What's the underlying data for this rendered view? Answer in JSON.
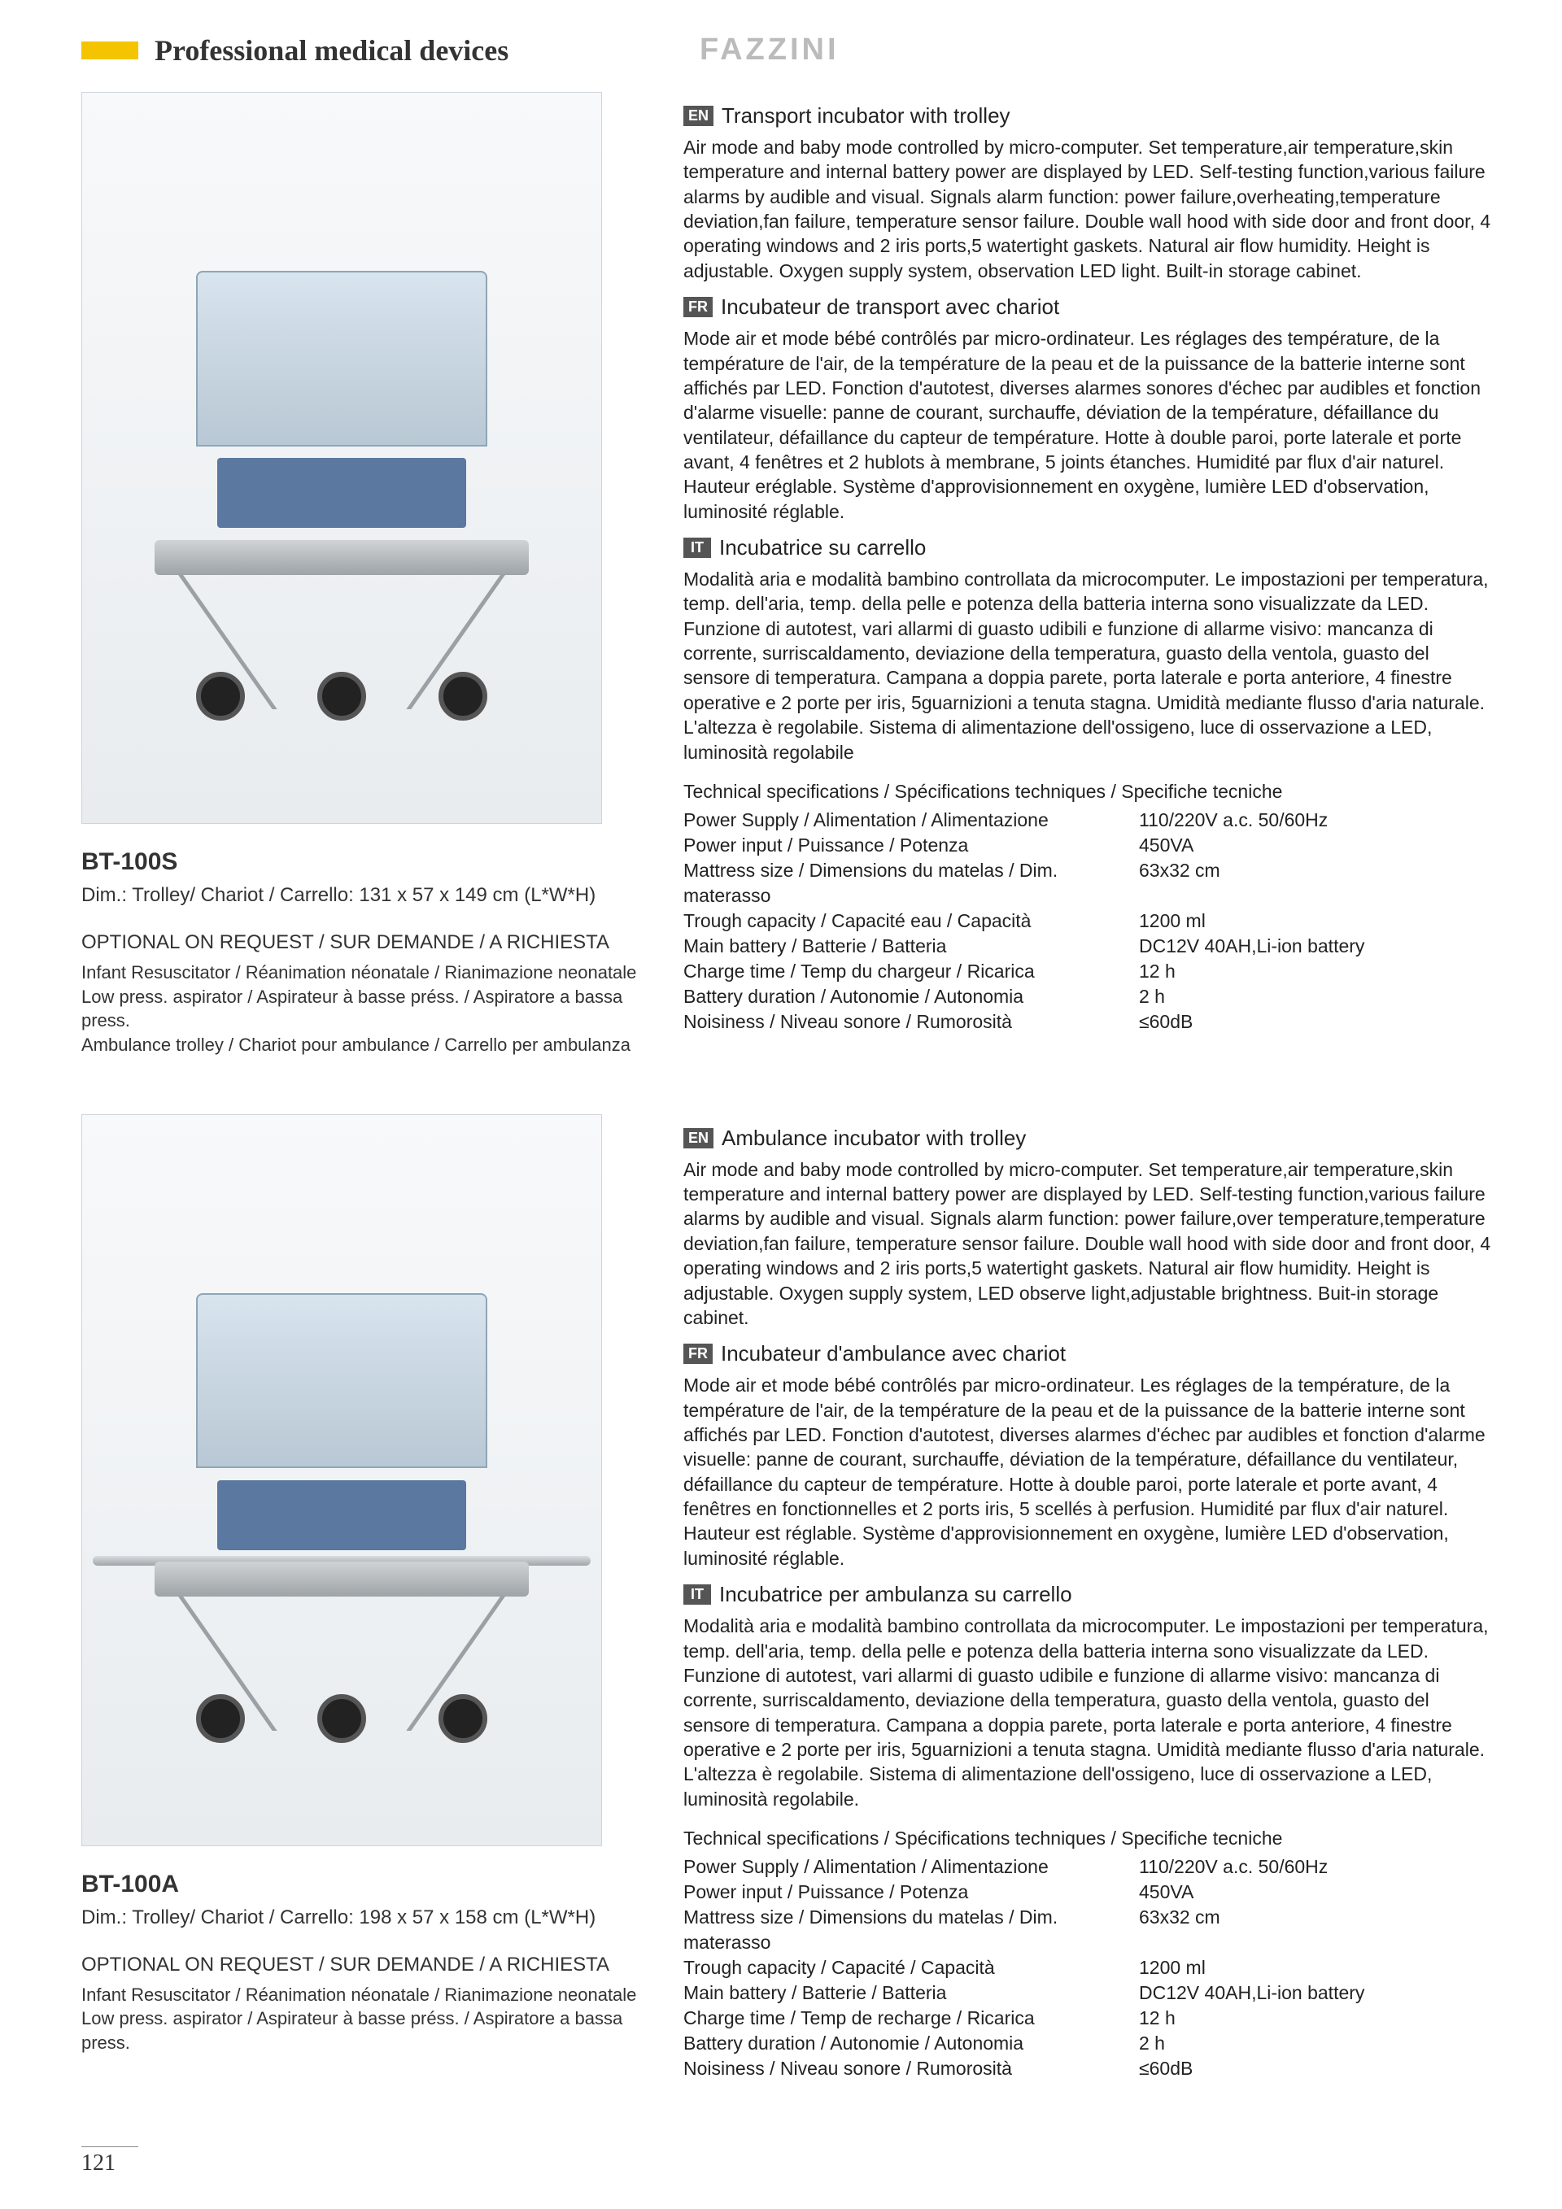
{
  "page": {
    "title": "Professional medical devices",
    "brand": "FAZZINI",
    "number": "121",
    "colors": {
      "accent_yellow": "#f5c400",
      "brand_gray": "#bbbbbb",
      "badge_bg": "#555555"
    }
  },
  "product1": {
    "model": "BT-100S",
    "dim": "Dim.: Trolley/ Chariot / Carrello: 131 x 57 x 149 cm (L*W*H)",
    "optional_header": "OPTIONAL ON REQUEST / SUR DEMANDE / A RICHIESTA",
    "optional_lines": [
      "Infant Resuscitator / Réanimation néonatale / Rianimazione neonatale",
      "Low press. aspirator / Aspirateur à basse préss. / Aspiratore a bassa press.",
      "Ambulance trolley / Chariot pour ambulance / Carrello per ambulanza"
    ],
    "en": {
      "badge": "EN",
      "title": "Transport incubator with trolley",
      "body": "Air mode and baby mode controlled by micro-computer. Set temperature,air temperature,skin temperature and internal battery power are displayed by LED. Self-testing function,various failure alarms by audible and visual. Signals alarm function: power failure,overheating,temperature deviation,fan failure, temperature sensor failure. Double wall hood with side door and front door, 4 operating windows and 2 iris ports,5 watertight gaskets. Natural air flow humidity. Height is adjustable. Oxygen supply system, observation LED light. Built-in storage cabinet."
    },
    "fr": {
      "badge": "FR",
      "title": "Incubateur de transport avec chariot",
      "body": "Mode air et mode bébé contrôlés par micro-ordinateur. Les réglages des température, de la température de l'air, de la température de la peau et de la puissance de la batterie interne sont affichés par LED. Fonction d'autotest, diverses alarmes sonores d'échec par audibles et fonction d'alarme visuelle: panne de courant, surchauffe, déviation de la température, défaillance du ventilateur, défaillance du capteur de température. Hotte à double paroi, porte laterale et porte avant, 4 fenêtres et 2 hublots à membrane, 5 joints étanches. Humidité par flux d'air naturel. Hauteur eréglable. Système d'approvisionnement en oxygène, lumière LED d'observation, luminosité réglable."
    },
    "it": {
      "badge": "IT",
      "title": "Incubatrice su carrello",
      "body": "Modalità aria e modalità bambino controllata da microcomputer. Le impostazioni per temperatura, temp. dell'aria, temp. della pelle e potenza della batteria interna sono visualizzate da LED. Funzione di autotest, vari allarmi di guasto udibili e funzione di allarme visivo: mancanza di corrente, surriscaldamento, deviazione della temperatura, guasto della ventola, guasto del sensore di temperatura. Campana a doppia parete, porta laterale e porta anteriore, 4 finestre operative e 2 porte per iris, 5guarnizioni a tenuta stagna. Umidità mediante flusso d'aria naturale. L'altezza è regolabile. Sistema di alimentazione dell'ossigeno, luce di osservazione a LED, luminosità regolabile"
    },
    "tech": {
      "header": "Technical specifications / Spécifications techniques / Specifiche tecniche",
      "rows": [
        {
          "label": "Power Supply / Alimentation / Alimentazione",
          "value": "110/220V a.c. 50/60Hz"
        },
        {
          "label": "Power input / Puissance / Potenza",
          "value": "450VA"
        },
        {
          "label": "Mattress size / Dimensions du matelas / Dim. materasso",
          "value": "63x32 cm"
        },
        {
          "label": "Trough capacity / Capacité eau / Capacità",
          "value": "1200 ml"
        },
        {
          "label": "Main battery / Batterie / Batteria",
          "value": "DC12V 40AH,Li-ion battery"
        },
        {
          "label": "Charge time / Temp du chargeur / Ricarica",
          "value": "12 h"
        },
        {
          "label": "Battery duration / Autonomie / Autonomia",
          "value": "2 h"
        },
        {
          "label": "Noisiness / Niveau sonore / Rumorosità",
          "value": "≤60dB"
        }
      ]
    }
  },
  "product2": {
    "model": "BT-100A",
    "dim": "Dim.: Trolley/ Chariot / Carrello: 198 x 57 x 158 cm (L*W*H)",
    "optional_header": "OPTIONAL ON REQUEST / SUR DEMANDE / A RICHIESTA",
    "optional_lines": [
      "Infant Resuscitator / Réanimation néonatale / Rianimazione neonatale",
      "Low press. aspirator / Aspirateur à basse préss. / Aspiratore a bassa press."
    ],
    "en": {
      "badge": "EN",
      "title": "Ambulance incubator with trolley",
      "body": "Air mode and baby mode controlled by micro-computer. Set temperature,air temperature,skin temperature and internal battery power are displayed by LED. Self-testing function,various failure alarms by audible and visual. Signals alarm function: power failure,over temperature,temperature deviation,fan failure, temperature sensor failure. Double wall hood with side door and front door, 4 operating windows and 2 iris ports,5 watertight gaskets. Natural air flow humidity. Height is adjustable. Oxygen supply system, LED observe light,adjustable brightness. Buit-in storage cabinet."
    },
    "fr": {
      "badge": "FR",
      "title": "Incubateur d'ambulance avec chariot",
      "body": "Mode air et mode bébé contrôlés par micro-ordinateur. Les réglages de la température, de la température de l'air, de la température de la peau et de la puissance de la batterie interne sont affichés par LED. Fonction d'autotest, diverses alarmes d'échec par audibles et fonction d'alarme visuelle: panne de courant, surchauffe, déviation de la température, défaillance du ventilateur, défaillance du capteur de température. Hotte à double paroi, porte laterale et porte avant, 4 fenêtres en fonctionnelles et 2 ports iris, 5 scellés à perfusion. Humidité par flux d'air naturel. Hauteur est réglable. Système d'approvisionnement en oxygène, lumière LED d'observation, luminosité réglable."
    },
    "it": {
      "badge": "IT",
      "title": "Incubatrice per ambulanza su carrello",
      "body": "Modalità aria e modalità bambino controllata da microcomputer. Le impostazioni per temperatura, temp. dell'aria, temp. della pelle e potenza della batteria interna sono visualizzate da LED. Funzione di autotest, vari allarmi di guasto udibile e funzione di allarme visivo: mancanza di corrente, surriscaldamento, deviazione della temperatura, guasto della ventola, guasto del sensore di temperatura. Campana a doppia parete, porta laterale e porta anteriore, 4 finestre operative e 2 porte per iris, 5guarnizioni a tenuta stagna. Umidità mediante flusso d'aria naturale. L'altezza è regolabile. Sistema di alimentazione dell'ossigeno, luce di osservazione a LED, luminosità regolabile."
    },
    "tech": {
      "header": "Technical specifications / Spécifications techniques / Specifiche tecniche",
      "rows": [
        {
          "label": "Power Supply / Alimentation / Alimentazione",
          "value": "110/220V a.c. 50/60Hz"
        },
        {
          "label": "Power input / Puissance / Potenza",
          "value": "450VA"
        },
        {
          "label": "Mattress size / Dimensions du matelas / Dim. materasso",
          "value": "63x32 cm"
        },
        {
          "label": "Trough capacity / Capacité / Capacità",
          "value": "1200 ml"
        },
        {
          "label": "Main battery / Batterie / Batteria",
          "value": "DC12V 40AH,Li-ion battery"
        },
        {
          "label": "Charge time / Temp de recharge / Ricarica",
          "value": "12 h"
        },
        {
          "label": "Battery duration / Autonomie / Autonomia",
          "value": "2 h"
        },
        {
          "label": "Noisiness / Niveau sonore / Rumorosità",
          "value": "≤60dB"
        }
      ]
    }
  }
}
